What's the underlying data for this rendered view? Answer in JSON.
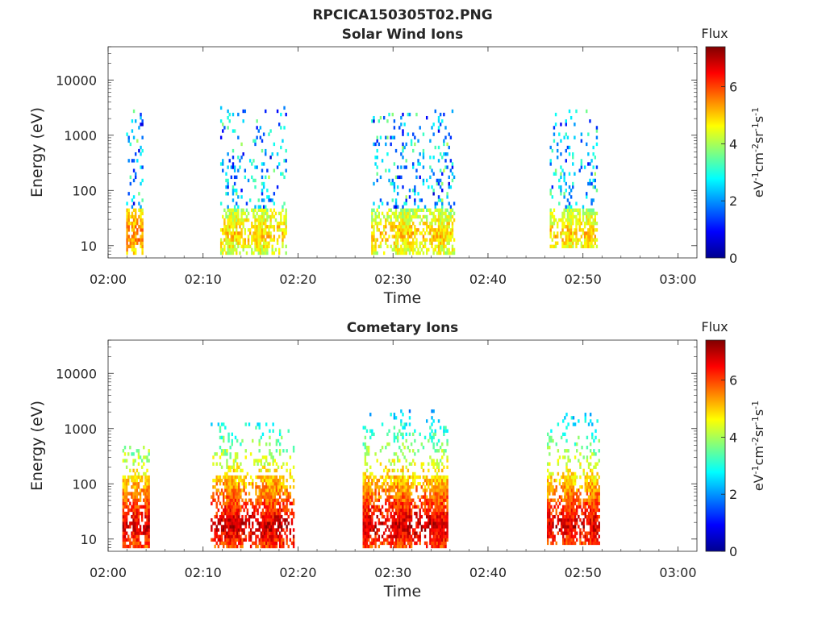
{
  "figure_title": "RPCICA150305T02.PNG",
  "chart_data": [
    {
      "type": "heatmap",
      "title": "Solar Wind Ions",
      "xlabel": "Time",
      "ylabel": "Energy (eV)",
      "x_ticks": [
        "02:00",
        "02:10",
        "02:20",
        "02:30",
        "02:40",
        "02:50",
        "03:00"
      ],
      "x_range_minutes": [
        0,
        62
      ],
      "y_scale": "log",
      "y_range": [
        6,
        40000
      ],
      "y_ticks": [
        {
          "value": 10,
          "label": "10"
        },
        {
          "value": 100,
          "label": "100"
        },
        {
          "value": 1000,
          "label": "1000"
        },
        {
          "value": 10000,
          "label": "10000"
        }
      ],
      "colorbar": {
        "label": "Flux",
        "units": "eV-1cm-2sr-1s-1",
        "range": [
          0,
          7.4
        ],
        "ticks": [
          "0",
          "2",
          "4",
          "6"
        ],
        "colormap": "jet"
      },
      "clusters": [
        {
          "t_start": 1.9,
          "t_end": 3.7,
          "e_min": 7,
          "e_max": 3000,
          "peak_energy": 16,
          "peak_flux": 5.6
        },
        {
          "t_start": 11.8,
          "t_end": 18.8,
          "e_min": 7,
          "e_max": 3500,
          "peak_energy": 16,
          "peak_flux": 5.0
        },
        {
          "t_start": 27.7,
          "t_end": 36.5,
          "e_min": 7,
          "e_max": 3000,
          "peak_energy": 16,
          "peak_flux": 5.0
        },
        {
          "t_start": 46.5,
          "t_end": 51.5,
          "e_min": 9,
          "e_max": 3000,
          "peak_energy": 16,
          "peak_flux": 5.0
        }
      ]
    },
    {
      "type": "heatmap",
      "title": "Cometary Ions",
      "xlabel": "Time",
      "ylabel": "Energy (eV)",
      "x_ticks": [
        "02:00",
        "02:10",
        "02:20",
        "02:30",
        "02:40",
        "02:50",
        "03:00"
      ],
      "x_range_minutes": [
        0,
        62
      ],
      "y_scale": "log",
      "y_range": [
        6,
        40000
      ],
      "y_ticks": [
        {
          "value": 10,
          "label": "10"
        },
        {
          "value": 100,
          "label": "100"
        },
        {
          "value": 1000,
          "label": "1000"
        },
        {
          "value": 10000,
          "label": "10000"
        }
      ],
      "colorbar": {
        "label": "Flux",
        "units": "eV-1cm-2sr-1s-1",
        "range": [
          0,
          7.4
        ],
        "ticks": [
          "0",
          "2",
          "4",
          "6"
        ],
        "colormap": "jet"
      },
      "clusters": [
        {
          "t_start": 1.5,
          "t_end": 4.3,
          "e_min": 7,
          "e_max": 500,
          "peak_energy": 17,
          "peak_flux": 6.8
        },
        {
          "t_start": 10.8,
          "t_end": 19.6,
          "e_min": 7,
          "e_max": 1300,
          "peak_energy": 17,
          "peak_flux": 6.9
        },
        {
          "t_start": 26.8,
          "t_end": 35.7,
          "e_min": 7,
          "e_max": 2200,
          "peak_energy": 17,
          "peak_flux": 6.9
        },
        {
          "t_start": 46.2,
          "t_end": 51.7,
          "e_min": 8,
          "e_max": 2000,
          "peak_energy": 17,
          "peak_flux": 6.8
        }
      ]
    }
  ]
}
